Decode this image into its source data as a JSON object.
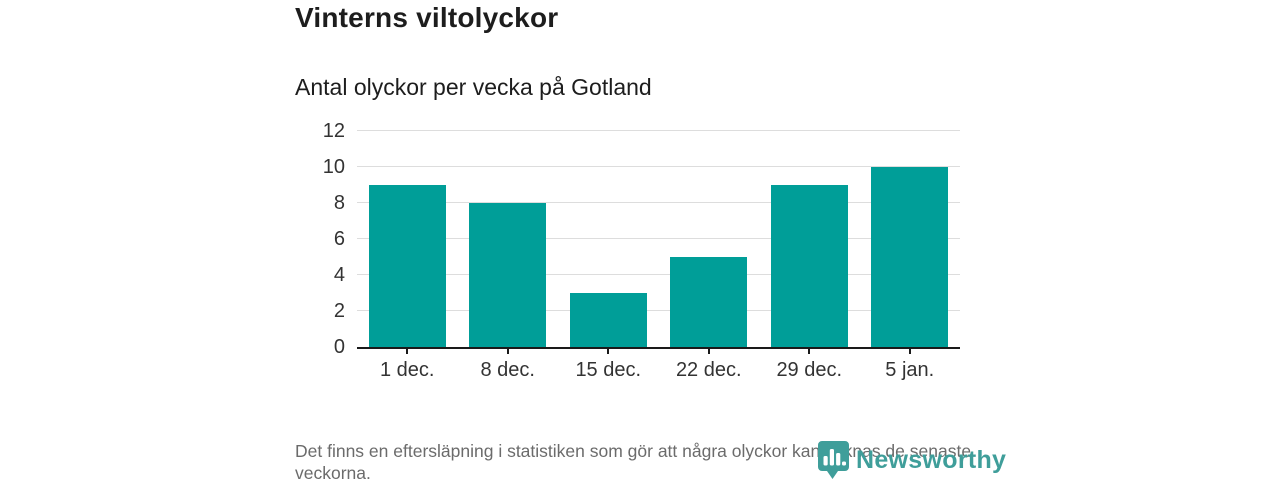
{
  "header": {
    "title": "Vinterns viltolyckor",
    "subtitle": "Antal olyckor per vecka på Gotland"
  },
  "footnote": "Det finns en eftersläpning i statistiken som gör att några olyckor kan saknas de senaste veckorna.",
  "brand": {
    "name": "Newsworthy",
    "icon": "bar-chart-bubble-icon",
    "color": "#3f9e9a"
  },
  "colors": {
    "bar": "#009e98",
    "grid": "#dddddd",
    "axis": "#1a1a1a",
    "text": "#1d1d1d",
    "muted": "#6b6b6b"
  },
  "chart_data": {
    "type": "bar",
    "title": "Vinterns viltolyckor",
    "subtitle": "Antal olyckor per vecka på Gotland",
    "categories": [
      "1 dec.",
      "8 dec.",
      "15 dec.",
      "22 dec.",
      "29 dec.",
      "5 jan."
    ],
    "values": [
      9,
      8,
      3,
      5,
      9,
      10
    ],
    "xlabel": "",
    "ylabel": "",
    "ylim": [
      0,
      12
    ],
    "yticks": [
      0,
      2,
      4,
      6,
      8,
      10,
      12
    ],
    "grid": true,
    "legend": false,
    "bar_color": "#009e98"
  }
}
